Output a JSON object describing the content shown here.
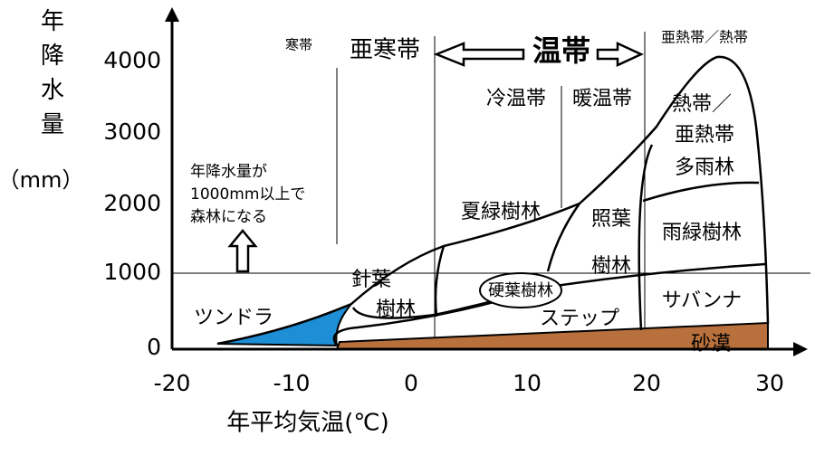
{
  "axes": {
    "y_title": "年降水量",
    "y_unit": "（mm）",
    "x_title": "年平均気温(℃)",
    "yticks": [
      "0",
      "1000",
      "2000",
      "3000",
      "4000"
    ],
    "xticks": [
      "-20",
      "-10",
      "0",
      "10",
      "20",
      "30"
    ]
  },
  "zones": {
    "cold": "寒帯",
    "subarctic": "亜寒帯",
    "temperate": "温帯",
    "subtropical_tropical": "亜熱帯／熱帯",
    "cool_temperate": "冷温帯",
    "warm_temperate": "暖温帯"
  },
  "annotation": [
    "年降水量が",
    "1000mm以上で",
    "森林になる"
  ],
  "biomes": {
    "tundra": [
      "ツンドラ"
    ],
    "coniferous": [
      "針葉",
      "樹林"
    ],
    "summer_green": [
      "夏緑樹林"
    ],
    "sclerophyll": [
      "硬葉樹林"
    ],
    "laurel": [
      "照葉",
      "樹林"
    ],
    "rainforest": [
      "熱帯／",
      "亜熱帯",
      "多雨林"
    ],
    "rain_green": [
      "雨緑樹林"
    ],
    "savanna": [
      "サバンナ"
    ],
    "steppe": [
      "ステップ"
    ],
    "desert": [
      "砂漠"
    ]
  }
}
